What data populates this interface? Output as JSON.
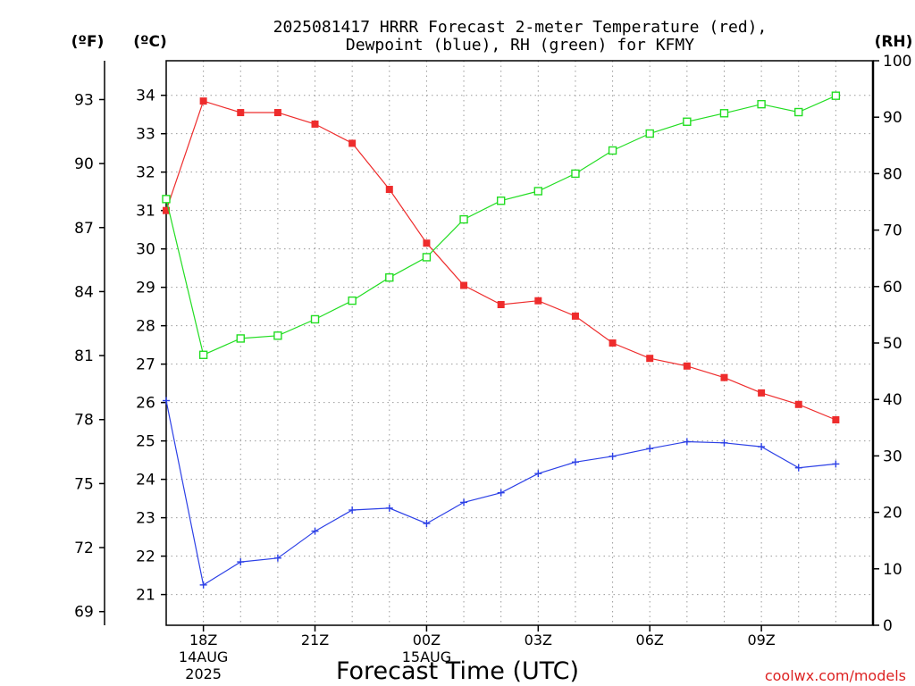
{
  "chart_data": {
    "type": "line",
    "title_line1": "2025081417 HRRR Forecast 2-meter Temperature (red),",
    "title_line2": "Dewpoint (blue), RH (green) for KFMY",
    "xlabel": "Forecast Time (UTC)",
    "left_outer_axis_label": "(ºF)",
    "left_inner_axis_label": "(ºC)",
    "right_axis_label": "(RH)",
    "credit": "coolwx.com/models",
    "x_start_hour": 17,
    "x_end_hour": 36,
    "x_ticks": [
      {
        "hour": 18,
        "label": "18Z",
        "sub1": "14AUG",
        "sub2": "2025"
      },
      {
        "hour": 21,
        "label": "21Z",
        "sub1": "",
        "sub2": ""
      },
      {
        "hour": 24,
        "label": "00Z",
        "sub1": "15AUG",
        "sub2": ""
      },
      {
        "hour": 27,
        "label": "03Z",
        "sub1": "",
        "sub2": ""
      },
      {
        "hour": 30,
        "label": "06Z",
        "sub1": "",
        "sub2": ""
      },
      {
        "hour": 33,
        "label": "09Z",
        "sub1": "",
        "sub2": ""
      }
    ],
    "c_range": [
      20.2,
      34.9
    ],
    "c_ticks": [
      21,
      22,
      23,
      24,
      25,
      26,
      27,
      28,
      29,
      30,
      31,
      32,
      33,
      34
    ],
    "f_ticks": [
      69,
      72,
      75,
      78,
      81,
      84,
      87,
      90,
      93
    ],
    "rh_range": [
      0,
      100
    ],
    "rh_ticks": [
      0,
      10,
      20,
      30,
      40,
      50,
      60,
      70,
      80,
      90,
      100
    ],
    "grid": true,
    "series": [
      {
        "name": "Temperature",
        "color": "#ee2c2c",
        "marker": "filled-square",
        "axis": "C",
        "values": [
          31.0,
          33.85,
          33.55,
          33.55,
          33.25,
          32.75,
          31.55,
          30.15,
          29.05,
          28.55,
          28.65,
          28.25,
          27.55,
          27.15,
          26.95,
          26.65,
          26.25,
          25.95,
          25.55
        ]
      },
      {
        "name": "Dewpoint",
        "color": "#2c40e6",
        "marker": "plus",
        "axis": "C",
        "values": [
          26.05,
          21.25,
          21.85,
          21.95,
          22.65,
          23.2,
          23.25,
          22.85,
          23.4,
          23.65,
          24.15,
          24.45,
          24.6,
          24.8,
          24.98,
          24.95,
          24.85,
          24.3,
          24.4
        ]
      },
      {
        "name": "RH",
        "color": "#22dd22",
        "marker": "open-square",
        "axis": "RH",
        "values": [
          75.5,
          47.9,
          50.8,
          51.3,
          54.2,
          57.5,
          61.6,
          65.2,
          71.9,
          75.2,
          76.9,
          80.0,
          84.1,
          87.1,
          89.2,
          90.7,
          92.3,
          90.9,
          93.8
        ]
      }
    ]
  }
}
